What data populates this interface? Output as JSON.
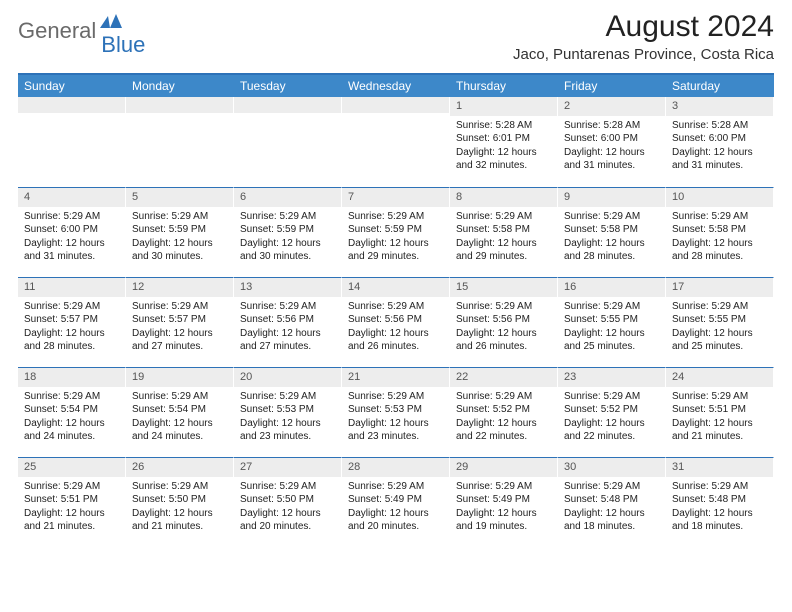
{
  "logo": {
    "text1": "General",
    "text2": "Blue"
  },
  "title": "August 2024",
  "location": "Jaco, Puntarenas Province, Costa Rica",
  "colors": {
    "header_blue": "#3d88c9",
    "rule_blue": "#2d72b8",
    "daynum_bg": "#ededed",
    "logo_gray": "#6a6a6a"
  },
  "daysOfWeek": [
    "Sunday",
    "Monday",
    "Tuesday",
    "Wednesday",
    "Thursday",
    "Friday",
    "Saturday"
  ],
  "weeks": [
    [
      {
        "n": "",
        "sr": "",
        "ss": "",
        "dl1": "",
        "dl2": ""
      },
      {
        "n": "",
        "sr": "",
        "ss": "",
        "dl1": "",
        "dl2": ""
      },
      {
        "n": "",
        "sr": "",
        "ss": "",
        "dl1": "",
        "dl2": ""
      },
      {
        "n": "",
        "sr": "",
        "ss": "",
        "dl1": "",
        "dl2": ""
      },
      {
        "n": "1",
        "sr": "Sunrise: 5:28 AM",
        "ss": "Sunset: 6:01 PM",
        "dl1": "Daylight: 12 hours",
        "dl2": "and 32 minutes."
      },
      {
        "n": "2",
        "sr": "Sunrise: 5:28 AM",
        "ss": "Sunset: 6:00 PM",
        "dl1": "Daylight: 12 hours",
        "dl2": "and 31 minutes."
      },
      {
        "n": "3",
        "sr": "Sunrise: 5:28 AM",
        "ss": "Sunset: 6:00 PM",
        "dl1": "Daylight: 12 hours",
        "dl2": "and 31 minutes."
      }
    ],
    [
      {
        "n": "4",
        "sr": "Sunrise: 5:29 AM",
        "ss": "Sunset: 6:00 PM",
        "dl1": "Daylight: 12 hours",
        "dl2": "and 31 minutes."
      },
      {
        "n": "5",
        "sr": "Sunrise: 5:29 AM",
        "ss": "Sunset: 5:59 PM",
        "dl1": "Daylight: 12 hours",
        "dl2": "and 30 minutes."
      },
      {
        "n": "6",
        "sr": "Sunrise: 5:29 AM",
        "ss": "Sunset: 5:59 PM",
        "dl1": "Daylight: 12 hours",
        "dl2": "and 30 minutes."
      },
      {
        "n": "7",
        "sr": "Sunrise: 5:29 AM",
        "ss": "Sunset: 5:59 PM",
        "dl1": "Daylight: 12 hours",
        "dl2": "and 29 minutes."
      },
      {
        "n": "8",
        "sr": "Sunrise: 5:29 AM",
        "ss": "Sunset: 5:58 PM",
        "dl1": "Daylight: 12 hours",
        "dl2": "and 29 minutes."
      },
      {
        "n": "9",
        "sr": "Sunrise: 5:29 AM",
        "ss": "Sunset: 5:58 PM",
        "dl1": "Daylight: 12 hours",
        "dl2": "and 28 minutes."
      },
      {
        "n": "10",
        "sr": "Sunrise: 5:29 AM",
        "ss": "Sunset: 5:58 PM",
        "dl1": "Daylight: 12 hours",
        "dl2": "and 28 minutes."
      }
    ],
    [
      {
        "n": "11",
        "sr": "Sunrise: 5:29 AM",
        "ss": "Sunset: 5:57 PM",
        "dl1": "Daylight: 12 hours",
        "dl2": "and 28 minutes."
      },
      {
        "n": "12",
        "sr": "Sunrise: 5:29 AM",
        "ss": "Sunset: 5:57 PM",
        "dl1": "Daylight: 12 hours",
        "dl2": "and 27 minutes."
      },
      {
        "n": "13",
        "sr": "Sunrise: 5:29 AM",
        "ss": "Sunset: 5:56 PM",
        "dl1": "Daylight: 12 hours",
        "dl2": "and 27 minutes."
      },
      {
        "n": "14",
        "sr": "Sunrise: 5:29 AM",
        "ss": "Sunset: 5:56 PM",
        "dl1": "Daylight: 12 hours",
        "dl2": "and 26 minutes."
      },
      {
        "n": "15",
        "sr": "Sunrise: 5:29 AM",
        "ss": "Sunset: 5:56 PM",
        "dl1": "Daylight: 12 hours",
        "dl2": "and 26 minutes."
      },
      {
        "n": "16",
        "sr": "Sunrise: 5:29 AM",
        "ss": "Sunset: 5:55 PM",
        "dl1": "Daylight: 12 hours",
        "dl2": "and 25 minutes."
      },
      {
        "n": "17",
        "sr": "Sunrise: 5:29 AM",
        "ss": "Sunset: 5:55 PM",
        "dl1": "Daylight: 12 hours",
        "dl2": "and 25 minutes."
      }
    ],
    [
      {
        "n": "18",
        "sr": "Sunrise: 5:29 AM",
        "ss": "Sunset: 5:54 PM",
        "dl1": "Daylight: 12 hours",
        "dl2": "and 24 minutes."
      },
      {
        "n": "19",
        "sr": "Sunrise: 5:29 AM",
        "ss": "Sunset: 5:54 PM",
        "dl1": "Daylight: 12 hours",
        "dl2": "and 24 minutes."
      },
      {
        "n": "20",
        "sr": "Sunrise: 5:29 AM",
        "ss": "Sunset: 5:53 PM",
        "dl1": "Daylight: 12 hours",
        "dl2": "and 23 minutes."
      },
      {
        "n": "21",
        "sr": "Sunrise: 5:29 AM",
        "ss": "Sunset: 5:53 PM",
        "dl1": "Daylight: 12 hours",
        "dl2": "and 23 minutes."
      },
      {
        "n": "22",
        "sr": "Sunrise: 5:29 AM",
        "ss": "Sunset: 5:52 PM",
        "dl1": "Daylight: 12 hours",
        "dl2": "and 22 minutes."
      },
      {
        "n": "23",
        "sr": "Sunrise: 5:29 AM",
        "ss": "Sunset: 5:52 PM",
        "dl1": "Daylight: 12 hours",
        "dl2": "and 22 minutes."
      },
      {
        "n": "24",
        "sr": "Sunrise: 5:29 AM",
        "ss": "Sunset: 5:51 PM",
        "dl1": "Daylight: 12 hours",
        "dl2": "and 21 minutes."
      }
    ],
    [
      {
        "n": "25",
        "sr": "Sunrise: 5:29 AM",
        "ss": "Sunset: 5:51 PM",
        "dl1": "Daylight: 12 hours",
        "dl2": "and 21 minutes."
      },
      {
        "n": "26",
        "sr": "Sunrise: 5:29 AM",
        "ss": "Sunset: 5:50 PM",
        "dl1": "Daylight: 12 hours",
        "dl2": "and 21 minutes."
      },
      {
        "n": "27",
        "sr": "Sunrise: 5:29 AM",
        "ss": "Sunset: 5:50 PM",
        "dl1": "Daylight: 12 hours",
        "dl2": "and 20 minutes."
      },
      {
        "n": "28",
        "sr": "Sunrise: 5:29 AM",
        "ss": "Sunset: 5:49 PM",
        "dl1": "Daylight: 12 hours",
        "dl2": "and 20 minutes."
      },
      {
        "n": "29",
        "sr": "Sunrise: 5:29 AM",
        "ss": "Sunset: 5:49 PM",
        "dl1": "Daylight: 12 hours",
        "dl2": "and 19 minutes."
      },
      {
        "n": "30",
        "sr": "Sunrise: 5:29 AM",
        "ss": "Sunset: 5:48 PM",
        "dl1": "Daylight: 12 hours",
        "dl2": "and 18 minutes."
      },
      {
        "n": "31",
        "sr": "Sunrise: 5:29 AM",
        "ss": "Sunset: 5:48 PM",
        "dl1": "Daylight: 12 hours",
        "dl2": "and 18 minutes."
      }
    ]
  ]
}
